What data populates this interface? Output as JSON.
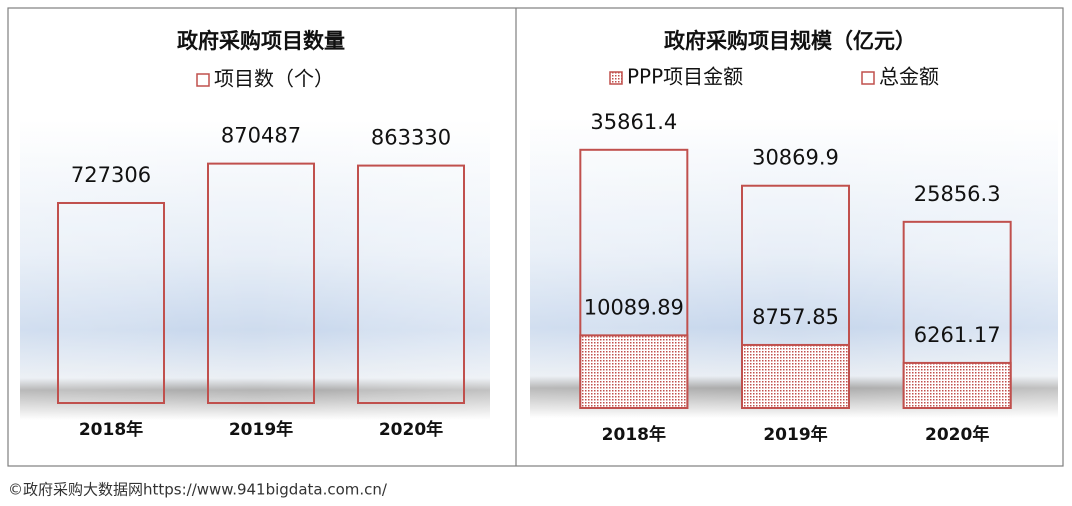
{
  "chart_data": [
    {
      "type": "bar",
      "title": "政府采购项目数量",
      "categories": [
        "2018年",
        "2019年",
        "2020年"
      ],
      "series": [
        {
          "name": "项目数（个）",
          "color": "#c0504d",
          "values": [
            727306,
            870487,
            863330
          ]
        }
      ],
      "ylim": [
        0,
        1000000
      ]
    },
    {
      "type": "bar",
      "title": "政府采购项目规模（亿元）",
      "barmode": "overlay",
      "categories": [
        "2018年",
        "2019年",
        "2020年"
      ],
      "series": [
        {
          "name": "PPP项目金额",
          "color": "#c0504d",
          "pattern": "dots",
          "values": [
            10089.89,
            8757.85,
            6261.17
          ]
        },
        {
          "name": "总金额",
          "color": "#c0504d",
          "values": [
            35861.4,
            30869.9,
            25856.3
          ]
        }
      ],
      "ylim": [
        0,
        40000
      ]
    }
  ],
  "footer": "©政府采购大数据网https://www.941bigdata.com.cn/"
}
